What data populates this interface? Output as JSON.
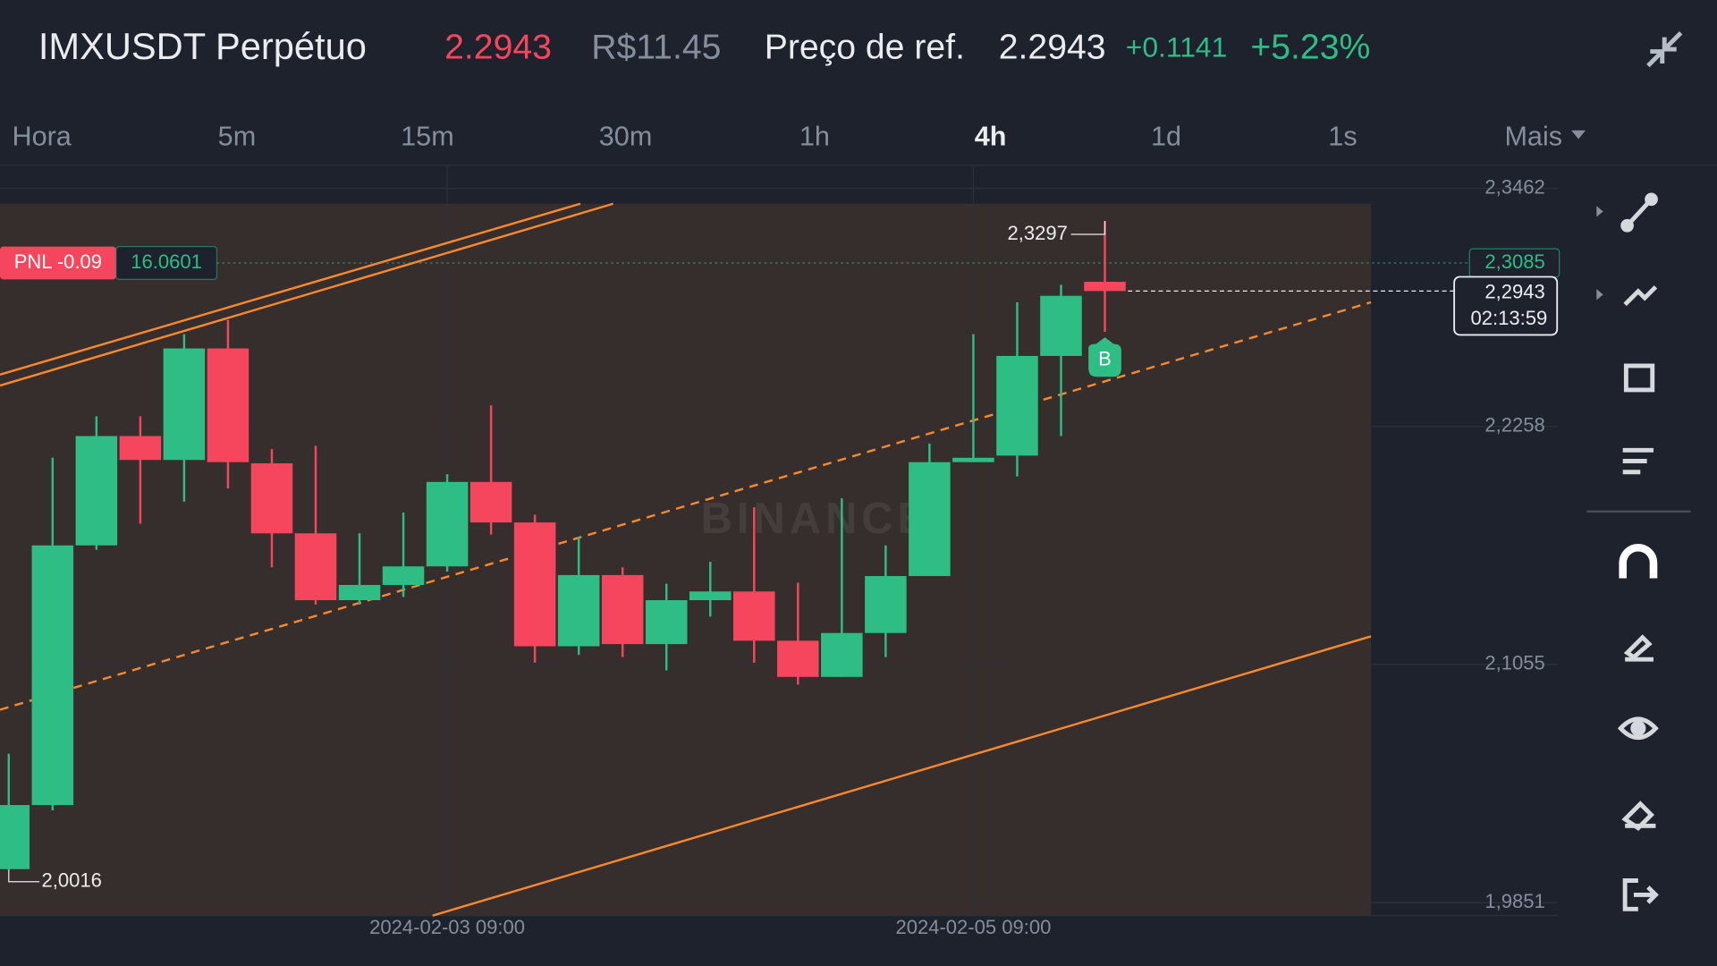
{
  "header": {
    "symbol": "IMXUSDT Perpétuo",
    "last_price": "2.2943",
    "local_price": "R$11.45",
    "ref_label": "Preço de ref.",
    "ref_price": "2.2943",
    "change": "+0.1141",
    "change_pct": "+5.23%"
  },
  "tabs": [
    "Hora",
    "5m",
    "15m",
    "30m",
    "1h",
    "4h",
    "1d",
    "1s",
    "Mais"
  ],
  "active_tab": "4h",
  "chart_data": {
    "type": "candlestick",
    "x": [
      null,
      null,
      null,
      null,
      null,
      null,
      null,
      null,
      null,
      null,
      "2024-02-03 09:00",
      null,
      null,
      null,
      null,
      null,
      null,
      null,
      null,
      null,
      null,
      null,
      "2024-02-05 09:00",
      null,
      null,
      null
    ],
    "open": [
      2.002,
      2.0344,
      2.1657,
      2.221,
      2.2089,
      2.2653,
      2.2072,
      2.1718,
      2.138,
      2.1457,
      2.1551,
      2.1978,
      2.1773,
      2.1147,
      2.1507,
      2.1158,
      2.138,
      2.1424,
      2.1175,
      2.0992,
      2.1214,
      2.1502,
      2.2078,
      2.2111,
      2.2615,
      2.299
    ],
    "high": [
      2.0604,
      2.21,
      2.231,
      2.231,
      2.2725,
      2.2797,
      2.2144,
      2.2161,
      2.1718,
      2.1823,
      2.2017,
      2.2365,
      2.1812,
      2.1701,
      2.1546,
      2.1463,
      2.1574,
      2.185,
      2.1468,
      2.1895,
      2.1657,
      2.2172,
      2.2725,
      2.2886,
      2.2975,
      2.3297
    ],
    "low": [
      2.0016,
      2.0317,
      2.1635,
      2.1767,
      2.1878,
      2.1945,
      2.1546,
      2.1358,
      2.1358,
      2.1396,
      2.1524,
      2.1712,
      2.1064,
      2.1103,
      2.1092,
      2.1025,
      2.1297,
      2.1064,
      2.0953,
      2.0992,
      2.1092,
      2.1502,
      2.2078,
      2.2006,
      2.221,
      2.2737
    ],
    "close": [
      2.0344,
      2.1657,
      2.221,
      2.2089,
      2.2653,
      2.2078,
      2.1718,
      2.138,
      2.1457,
      2.1551,
      2.1978,
      2.1773,
      2.1147,
      2.1507,
      2.1158,
      2.138,
      2.1424,
      2.1175,
      2.0992,
      2.1214,
      2.1502,
      2.2078,
      2.21,
      2.2615,
      2.2919,
      2.2943
    ],
    "up_color": "#2ebd85",
    "down_color": "#f6465d",
    "ylim": [
      1.9785,
      2.3573
    ],
    "yticks": [
      {
        "value": 2.3462,
        "label": "2,3462"
      },
      {
        "value": 2.2258,
        "label": "2,2258"
      },
      {
        "value": 2.1055,
        "label": "2,1055"
      },
      {
        "value": 1.9851,
        "label": "1,9851"
      }
    ],
    "grid": true,
    "high_marker": {
      "value": 2.3297,
      "label": "2,3297"
    },
    "low_marker": {
      "value": 2.0016,
      "label": "2,0016"
    },
    "position": {
      "pnl_label": "PNL -0.09",
      "entry_label": "16.0601",
      "line": {
        "value": 2.3085,
        "label": "2,3085"
      }
    },
    "current_price": {
      "value": 2.2943,
      "label": "2,2943",
      "countdown": "02:13:59"
    },
    "trade_marker": "B",
    "watermark": "BINANCE"
  }
}
